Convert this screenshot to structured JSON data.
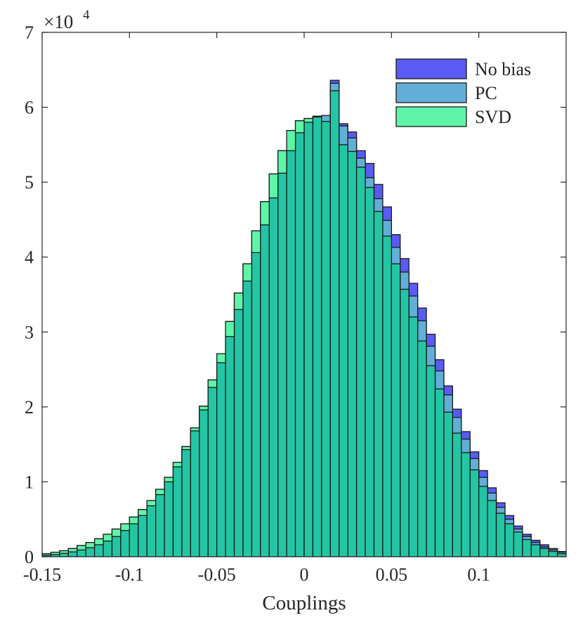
{
  "chart_data": {
    "type": "bar",
    "subtype": "overlaid-histogram",
    "xlabel": "Couplings",
    "ylabel": "",
    "exponent_label": "×10",
    "exponent_power": "4",
    "xlim": [
      -0.15,
      0.15
    ],
    "ylim": [
      0,
      70000
    ],
    "bin_width": 0.005,
    "bin_start": -0.15,
    "xticks": [
      -0.15,
      -0.1,
      -0.05,
      0,
      0.05,
      0.1
    ],
    "xtick_labels": [
      "-0.15",
      "-0.1",
      "-0.05",
      "0",
      "0.05",
      "0.1"
    ],
    "yticks": [
      0,
      10000,
      20000,
      30000,
      40000,
      50000,
      60000,
      70000
    ],
    "ytick_labels": [
      "0",
      "1",
      "2",
      "3",
      "4",
      "5",
      "6",
      "7"
    ],
    "legend_position": "top-right",
    "series": [
      {
        "name": "No bias",
        "color": "#5a5af5",
        "values": [
          200,
          300,
          450,
          650,
          900,
          1200,
          1600,
          2100,
          2700,
          3500,
          4400,
          5500,
          6800,
          8300,
          10000,
          12000,
          14300,
          16800,
          19600,
          22600,
          25900,
          29400,
          33000,
          36800,
          40600,
          44300,
          47900,
          51200,
          54200,
          56600,
          58000,
          58700,
          58700,
          63600,
          57800,
          56700,
          54200,
          52500,
          49700,
          46700,
          43000,
          39800,
          36500,
          33200,
          29700,
          26300,
          22800,
          19700,
          16700,
          14000,
          11500,
          9200,
          7200,
          5500,
          4100,
          3000,
          2200,
          1600,
          1100,
          700
        ]
      },
      {
        "name": "PC",
        "color": "#61afd6",
        "values": [
          200,
          300,
          450,
          650,
          900,
          1200,
          1600,
          2100,
          2700,
          3500,
          4400,
          5500,
          6800,
          8300,
          10000,
          12000,
          14300,
          16800,
          19600,
          22600,
          25900,
          29400,
          33000,
          36800,
          40600,
          44300,
          47900,
          51200,
          54200,
          56600,
          58000,
          58700,
          58900,
          63200,
          57500,
          55900,
          53200,
          50600,
          47800,
          44900,
          41300,
          38000,
          34800,
          31500,
          28100,
          24800,
          21600,
          18600,
          15700,
          13100,
          10600,
          8500,
          6600,
          5000,
          3700,
          2700,
          1900,
          1300,
          900,
          600
        ]
      },
      {
        "name": "SVD",
        "color": "#5ef5a8",
        "values": [
          400,
          600,
          800,
          1100,
          1500,
          1900,
          2400,
          3000,
          3700,
          4400,
          5300,
          6300,
          7500,
          9000,
          10600,
          12600,
          14700,
          17200,
          20100,
          23600,
          27100,
          31400,
          35200,
          39100,
          43500,
          47400,
          51100,
          54200,
          56900,
          58200,
          58500,
          58800,
          58100,
          62200,
          55000,
          54100,
          52000,
          49300,
          46100,
          42800,
          39100,
          35700,
          32000,
          28800,
          25500,
          22400,
          19300,
          16500,
          13900,
          11600,
          9400,
          7500,
          5800,
          4400,
          3300,
          2300,
          1600,
          1100,
          700,
          400
        ]
      }
    ],
    "overlap_color": "#1ec8a0"
  }
}
